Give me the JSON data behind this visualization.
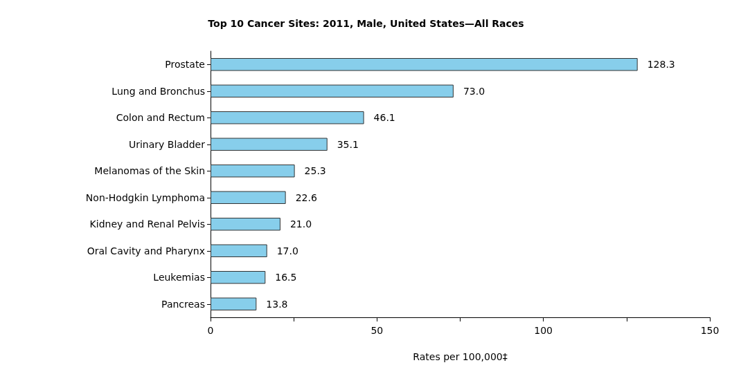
{
  "chart_data": {
    "type": "bar",
    "orientation": "horizontal",
    "title": "Top 10 Cancer Sites: 2011, Male, United States—All Races",
    "xlabel": "Rates per 100,000‡",
    "categories": [
      "Prostate",
      "Lung and Bronchus",
      "Colon and Rectum",
      "Urinary Bladder",
      "Melanomas of the Skin",
      "Non-Hodgkin Lymphoma",
      "Kidney and Renal Pelvis",
      "Oral Cavity and Pharynx",
      "Leukemias",
      "Pancreas"
    ],
    "values": [
      128.3,
      73.0,
      46.1,
      35.1,
      25.3,
      22.6,
      21.0,
      17.0,
      16.5,
      13.8
    ],
    "value_labels": [
      "128.3",
      "73.0",
      "46.1",
      "35.1",
      "25.3",
      "22.6",
      "21.0",
      "17.0",
      "16.5",
      "13.8"
    ],
    "color": "#87ceeb",
    "xlim": [
      0,
      150
    ],
    "xticks": [
      0,
      {
        "value": 25,
        "label": null
      },
      50,
      {
        "value": 75,
        "label": null
      },
      100,
      {
        "value": 125,
        "label": null
      },
      150
    ],
    "grid": false
  }
}
